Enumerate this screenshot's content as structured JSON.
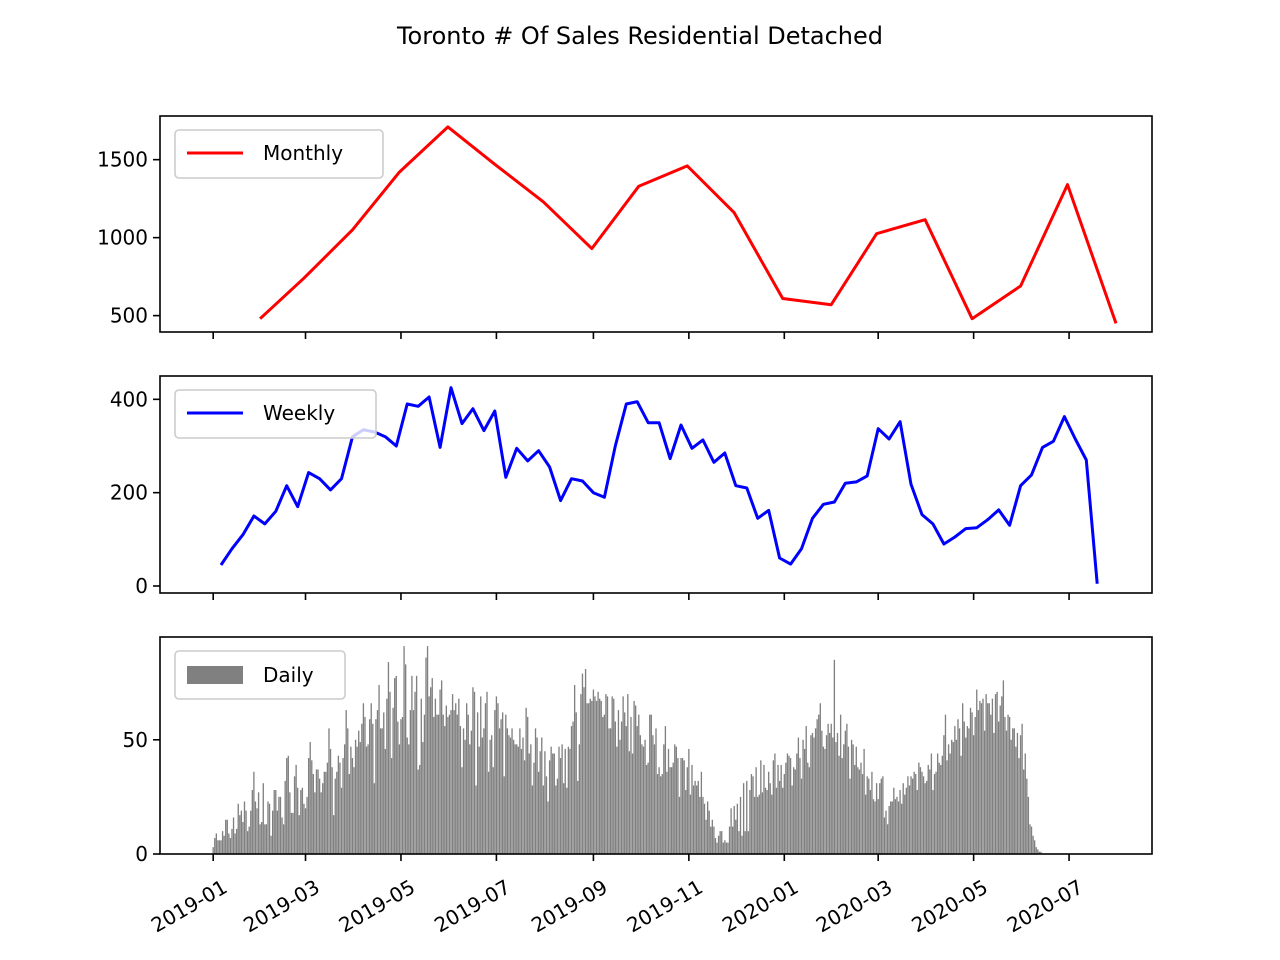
{
  "figure": {
    "title": "Toronto # Of Sales Residential Detached"
  },
  "x_ticks": [
    "2019-01",
    "2019-03",
    "2019-05",
    "2019-07",
    "2019-09",
    "2019-11",
    "2020-01",
    "2020-03",
    "2020-05",
    "2020-07"
  ],
  "colors": {
    "monthly": "#ff0000",
    "weekly": "#0000ff",
    "daily": "#808080",
    "axes": "#000000",
    "legend_border": "#cccccc"
  },
  "chart_data": [
    {
      "type": "line",
      "legend": {
        "label": "Monthly",
        "placement": "upper-left"
      },
      "ylim": [
        395,
        1780
      ],
      "yticks": [
        500,
        1000,
        1500
      ],
      "x": [
        "2019-01-31",
        "2019-02-28",
        "2019-03-31",
        "2019-04-30",
        "2019-05-31",
        "2019-06-30",
        "2019-07-31",
        "2019-08-31",
        "2019-09-30",
        "2019-10-31",
        "2019-11-30",
        "2019-12-31",
        "2020-01-31",
        "2020-02-29",
        "2020-03-31",
        "2020-04-30",
        "2020-05-31",
        "2020-06-30",
        "2020-07-31"
      ],
      "values": [
        480,
        740,
        1050,
        1420,
        1710,
        1470,
        1230,
        930,
        1330,
        1460,
        1160,
        610,
        570,
        1025,
        1115,
        480,
        690,
        1340,
        450
      ]
    },
    {
      "type": "line",
      "legend": {
        "label": "Weekly",
        "placement": "upper-left"
      },
      "ylim": [
        -15,
        450
      ],
      "yticks": [
        0,
        200,
        400
      ],
      "x_start": "2019-01-06",
      "x_step_days": 7,
      "values": [
        45,
        80,
        110,
        150,
        133,
        160,
        215,
        170,
        243,
        230,
        206,
        230,
        320,
        335,
        330,
        320,
        300,
        390,
        385,
        405,
        297,
        425,
        348,
        380,
        333,
        375,
        233,
        295,
        268,
        290,
        255,
        183,
        230,
        225,
        200,
        190,
        300,
        390,
        395,
        350,
        350,
        273,
        345,
        295,
        313,
        265,
        285,
        215,
        210,
        145,
        162,
        60,
        47,
        80,
        145,
        175,
        180,
        220,
        223,
        236,
        337,
        315,
        352,
        218,
        153,
        133,
        90,
        105,
        123,
        125,
        142,
        163,
        130,
        215,
        238,
        297,
        310,
        363,
        315,
        270,
        5
      ]
    },
    {
      "type": "bar",
      "legend": {
        "label": "Daily",
        "placement": "upper-left"
      },
      "ylim": [
        0,
        95
      ],
      "yticks": [
        0,
        50
      ],
      "x_start": "2019-01-01",
      "x_end": "2020-07-31",
      "values": [
        3,
        7,
        9,
        6,
        6,
        6,
        10,
        8,
        15,
        15,
        9,
        7,
        11,
        16,
        9,
        11,
        22,
        17,
        19,
        14,
        23,
        19,
        10,
        12,
        19,
        28,
        36,
        23,
        20,
        27,
        13,
        14,
        31,
        13,
        13,
        23,
        22,
        8,
        19,
        28,
        28,
        19,
        25,
        25,
        16,
        13,
        32,
        42,
        43,
        27,
        18,
        18,
        34,
        39,
        29,
        17,
        28,
        29,
        22,
        20,
        25,
        42,
        49,
        41,
        35,
        27,
        37,
        37,
        33,
        27,
        31,
        36,
        36,
        40,
        55,
        46,
        38,
        17,
        33,
        36,
        43,
        40,
        29,
        42,
        48,
        63,
        55,
        35,
        47,
        42,
        38,
        50,
        47,
        54,
        49,
        57,
        66,
        60,
        47,
        48,
        59,
        66,
        57,
        31,
        59,
        63,
        74,
        55,
        55,
        62,
        46,
        68,
        84,
        71,
        42,
        64,
        77,
        78,
        58,
        48,
        59,
        60,
        91,
        83,
        51,
        48,
        63,
        78,
        63,
        71,
        78,
        37,
        39,
        68,
        49,
        61,
        86,
        91,
        69,
        73,
        77,
        60,
        68,
        61,
        61,
        72,
        76,
        61,
        56,
        65,
        60,
        61,
        63,
        70,
        63,
        66,
        61,
        68,
        56,
        38,
        55,
        50,
        66,
        61,
        48,
        54,
        73,
        71,
        30,
        62,
        47,
        69,
        51,
        55,
        66,
        71,
        36,
        50,
        52,
        38,
        63,
        69,
        66,
        55,
        59,
        62,
        34,
        61,
        55,
        52,
        51,
        55,
        50,
        48,
        48,
        47,
        55,
        46,
        51,
        41,
        64,
        60,
        44,
        48,
        30,
        40,
        55,
        51,
        36,
        45,
        51,
        30,
        45,
        34,
        23,
        41,
        47,
        44,
        44,
        30,
        33,
        47,
        42,
        48,
        31,
        46,
        29,
        47,
        46,
        56,
        58,
        74,
        62,
        32,
        48,
        70,
        79,
        73,
        81,
        66,
        66,
        68,
        67,
        72,
        69,
        67,
        71,
        68,
        67,
        60,
        61,
        70,
        69,
        55,
        55,
        69,
        68,
        58,
        47,
        63,
        50,
        58,
        69,
        62,
        56,
        70,
        45,
        60,
        44,
        67,
        65,
        56,
        61,
        52,
        48,
        47,
        50,
        39,
        40,
        61,
        61,
        52,
        48,
        55,
        35,
        38,
        34,
        35,
        48,
        56,
        36,
        46,
        38,
        38,
        40,
        48,
        47,
        42,
        25,
        42,
        42,
        41,
        28,
        38,
        46,
        26,
        39,
        30,
        32,
        30,
        32,
        25,
        36,
        25,
        22,
        15,
        23,
        19,
        12,
        15,
        12,
        7,
        5,
        8,
        10,
        10,
        5,
        6,
        5,
        5,
        12,
        20,
        12,
        21,
        15,
        22,
        10,
        25,
        8,
        31,
        10,
        32,
        10,
        28,
        35,
        34,
        25,
        38,
        25,
        26,
        41,
        27,
        39,
        29,
        28,
        36,
        31,
        26,
        41,
        44,
        29,
        39,
        32,
        39,
        29,
        35,
        40,
        44,
        43,
        42,
        30,
        38,
        37,
        44,
        51,
        42,
        33,
        50,
        46,
        56,
        40,
        38,
        52,
        53,
        51,
        55,
        59,
        61,
        66,
        54,
        47,
        46,
        52,
        57,
        53,
        57,
        51,
        85,
        49,
        53,
        43,
        61,
        42,
        48,
        54,
        57,
        47,
        33,
        50,
        48,
        39,
        47,
        38,
        37,
        40,
        35,
        46,
        26,
        34,
        33,
        28,
        36,
        24,
        23,
        31,
        24,
        31,
        33,
        34,
        16,
        19,
        13,
        21,
        23,
        23,
        29,
        24,
        25,
        23,
        28,
        22,
        31,
        26,
        29,
        34,
        30,
        34,
        33,
        36,
        35,
        28,
        40,
        38,
        36,
        34,
        31,
        32,
        39,
        37,
        44,
        28,
        35,
        36,
        44,
        40,
        39,
        43,
        52,
        61,
        41,
        48,
        44,
        50,
        49,
        56,
        50,
        59,
        55,
        43,
        66,
        58,
        51,
        56,
        55,
        64,
        62,
        52,
        60,
        72,
        63,
        67,
        66,
        68,
        54,
        70,
        66,
        66,
        61,
        68,
        53,
        70,
        71,
        58,
        65,
        69,
        76,
        60,
        54,
        61,
        60,
        50,
        55,
        55,
        47,
        53,
        42,
        52,
        57,
        37,
        44,
        33,
        25,
        13,
        12,
        8,
        6,
        3,
        2,
        1,
        1,
        0
      ]
    }
  ]
}
